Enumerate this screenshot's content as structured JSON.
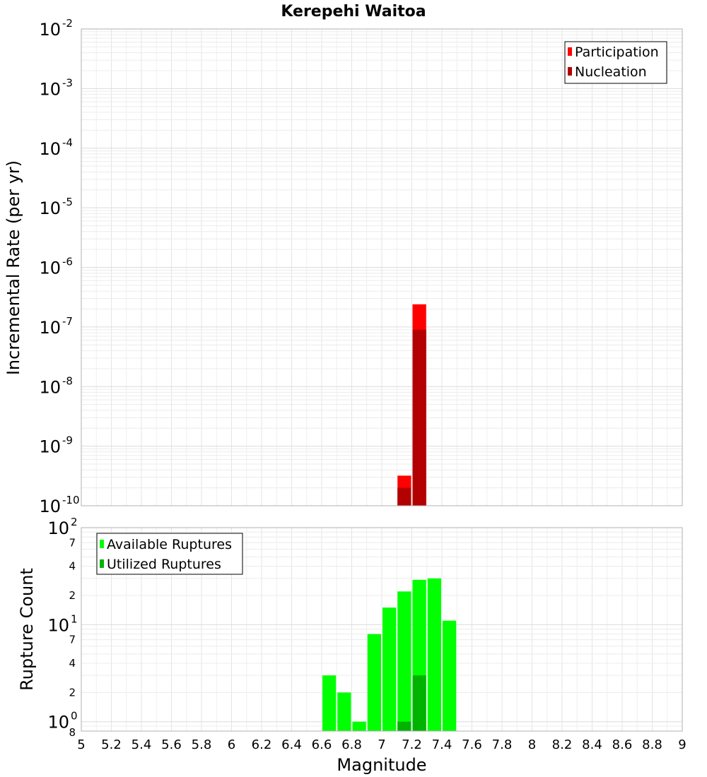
{
  "chart_data": [
    {
      "type": "bar",
      "title": "Kerepehi Waitoa",
      "ylabel": "Incremental Rate (per yr)",
      "xlabel": "",
      "y_scale": "log",
      "ylim": [
        1e-10,
        0.01
      ],
      "xlim": [
        5,
        9
      ],
      "grid": true,
      "legend_position": "top-right",
      "y_decade_ticks": [
        {
          "base": "10",
          "exp": "-10",
          "value": 1e-10
        },
        {
          "base": "10",
          "exp": "-9",
          "value": 1e-09
        },
        {
          "base": "10",
          "exp": "-8",
          "value": 1e-08
        },
        {
          "base": "10",
          "exp": "-7",
          "value": 1e-07
        },
        {
          "base": "10",
          "exp": "-6",
          "value": 1e-06
        },
        {
          "base": "10",
          "exp": "-5",
          "value": 1e-05
        },
        {
          "base": "10",
          "exp": "-4",
          "value": 0.0001
        },
        {
          "base": "10",
          "exp": "-3",
          "value": 0.001
        },
        {
          "base": "10",
          "exp": "-2",
          "value": 0.01
        }
      ],
      "bar_width": 0.1,
      "series": [
        {
          "name": "Participation",
          "color": "#ff0000",
          "x": [
            7.15,
            7.25
          ],
          "values": [
            3.2e-10,
            2.4e-07
          ]
        },
        {
          "name": "Nucleation",
          "color": "#b30000",
          "x": [
            7.15,
            7.25
          ],
          "values": [
            2e-10,
            9e-08
          ]
        }
      ]
    },
    {
      "type": "bar",
      "title": "",
      "ylabel": "Rupture Count",
      "xlabel": "Magnitude",
      "y_scale": "log",
      "ylim": [
        0.8,
        100
      ],
      "xlim": [
        5,
        9
      ],
      "grid": true,
      "legend_position": "top-left",
      "y_decade_ticks": [
        {
          "base": "10",
          "exp": "0",
          "value": 1
        },
        {
          "base": "10",
          "exp": "1",
          "value": 10
        },
        {
          "base": "10",
          "exp": "2",
          "value": 100
        }
      ],
      "y_minor_labels": [
        {
          "label": "8",
          "value": 0.8
        },
        {
          "label": "2",
          "value": 2
        },
        {
          "label": "4",
          "value": 4
        },
        {
          "label": "7",
          "value": 7
        },
        {
          "label": "2",
          "value": 20
        },
        {
          "label": "4",
          "value": 40
        },
        {
          "label": "7",
          "value": 70
        }
      ],
      "x_ticks": [
        "5",
        "5.2",
        "5.4",
        "5.6",
        "5.8",
        "6",
        "6.2",
        "6.4",
        "6.6",
        "6.8",
        "7",
        "7.2",
        "7.4",
        "7.6",
        "7.8",
        "8",
        "8.2",
        "8.4",
        "8.6",
        "8.8",
        "9"
      ],
      "bar_width": 0.1,
      "series": [
        {
          "name": "Available Ruptures",
          "color": "#00ff00",
          "x": [
            6.65,
            6.75,
            6.85,
            6.95,
            7.05,
            7.15,
            7.25,
            7.35,
            7.45
          ],
          "values": [
            3,
            2,
            1,
            8,
            15,
            22,
            29,
            30,
            11
          ]
        },
        {
          "name": "Utilized Ruptures",
          "color": "#00b300",
          "x": [
            7.15,
            7.25
          ],
          "values": [
            1,
            3
          ]
        }
      ]
    }
  ]
}
